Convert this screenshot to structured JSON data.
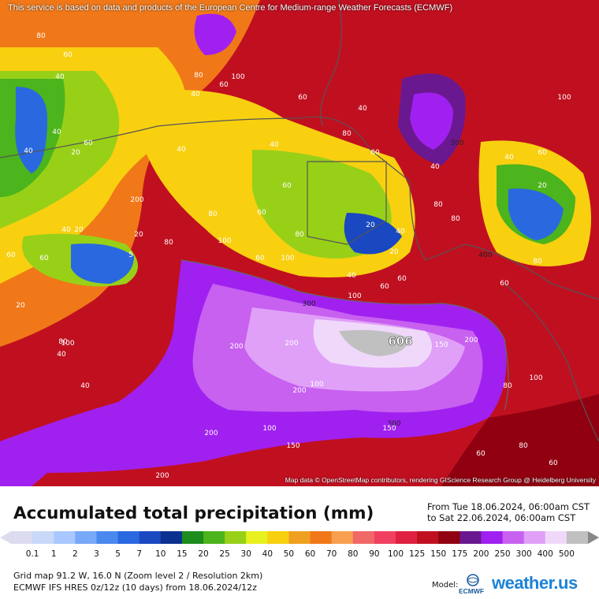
{
  "map": {
    "disclaimer": "This service is based on data and products of the European Centre for Medium-range Weather Forecasts (ECMWF)",
    "attribution": "Map data © OpenStreetMap contributors, rendering GIScience Research Group @ Heidelberg University",
    "max_value_label": "606",
    "contour_labels": [
      "80",
      "60",
      "40",
      "40",
      "40",
      "20",
      "40",
      "60",
      "40",
      "60",
      "80",
      "100",
      "60",
      "40",
      "60",
      "80",
      "40",
      "60",
      "60",
      "80",
      "100",
      "60",
      "80",
      "100",
      "20",
      "40",
      "80",
      "40",
      "80",
      "20",
      "40",
      "60",
      "60",
      "100",
      "80",
      "20",
      "5",
      "40",
      "60",
      "80",
      "100",
      "40",
      "60",
      "20",
      "40",
      "20",
      "60",
      "80",
      "100",
      "200",
      "300",
      "400",
      "300",
      "200",
      "100",
      "200",
      "300",
      "200",
      "200",
      "150",
      "200",
      "150",
      "100",
      "80",
      "60",
      "80",
      "100",
      "60",
      "60",
      "40",
      "20",
      "200",
      "150"
    ],
    "colors": {
      "c0": "#dcdcf0",
      "c01": "#c8d8f8",
      "c1": "#a8c8ff",
      "c2": "#78a8f8",
      "c3": "#4a88f0",
      "c5": "#2a68e0",
      "c7": "#1a48c0",
      "c10": "#0a3090",
      "c15": "#1c8c1c",
      "c20": "#4cb41c",
      "c25": "#98d018",
      "c30": "#e8f020",
      "c40": "#f8d010",
      "c50": "#f0a020",
      "c60": "#f07818",
      "c70": "#f8a050",
      "c80": "#f06868",
      "c90": "#f04060",
      "c100": "#e02040",
      "c125": "#c01020",
      "c150": "#900010",
      "c175": "#6a1890",
      "c200": "#a020f0",
      "c250": "#c860f0",
      "c300": "#e0a0f8",
      "c400": "#f0d8fa",
      "c500": "#c0c0c0"
    }
  },
  "legend": {
    "title": "Accumulated total precipitation (mm)",
    "period_from": "From Tue 18.06.2024, 06:00am CST",
    "period_to": "to Sat 22.06.2024, 06:00am CST",
    "ticks": [
      "0.1",
      "1",
      "2",
      "3",
      "5",
      "7",
      "10",
      "15",
      "20",
      "25",
      "30",
      "40",
      "50",
      "60",
      "70",
      "80",
      "90",
      "100",
      "125",
      "150",
      "175",
      "200",
      "250",
      "300",
      "400",
      "500"
    ],
    "scale_colors": [
      "#dcdcf0",
      "#c8d8f8",
      "#a8c8ff",
      "#78a8f8",
      "#4a88f0",
      "#2a68e0",
      "#1a48c0",
      "#0a3090",
      "#1c8c1c",
      "#4cb41c",
      "#98d018",
      "#e8f020",
      "#f8d010",
      "#f0a020",
      "#f07818",
      "#f8a050",
      "#f06868",
      "#f04060",
      "#e02040",
      "#c01020",
      "#900010",
      "#6a1890",
      "#a020f0",
      "#c860f0",
      "#e0a0f8",
      "#f0d8fa",
      "#c0c0c0"
    ],
    "grid_info": "Grid map 91.2 W, 16.0 N (Zoom level 2 / Resolution 2km)",
    "model_info": "ECMWF IFS HRES 0z/12z (10 days) from 18.06.2024/12z",
    "model_label": "Model:",
    "ecmwf_logo_text": "ECMWF",
    "brand": "weather.us"
  }
}
